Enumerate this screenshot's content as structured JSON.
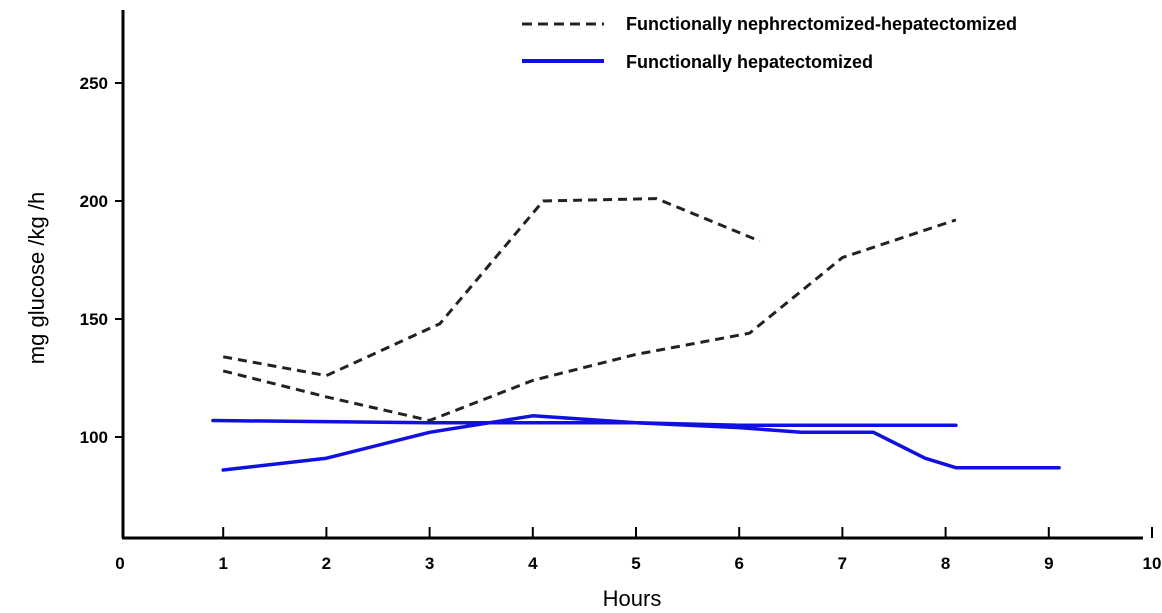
{
  "chart_data": {
    "type": "line",
    "title": "",
    "xlabel": "Hours",
    "ylabel": "mg glucose /kg /h",
    "xlim": [
      0,
      10
    ],
    "ylim": [
      45,
      275
    ],
    "x_ticks": [
      "0",
      "1",
      "2",
      "3",
      "4",
      "5",
      "6",
      "7",
      "8",
      "9",
      "10"
    ],
    "y_ticks": [
      "100",
      "150",
      "200",
      "250"
    ],
    "grid": false,
    "legend_position": "top-right",
    "legend": [
      {
        "label": "Functionally nephrectomized-hepatectomized",
        "style": "dashed",
        "color": "#222222"
      },
      {
        "label": "Functionally hepatectomized",
        "style": "solid",
        "color": "#1010e0"
      }
    ],
    "series": [
      {
        "group": "Functionally nephrectomized-hepatectomized",
        "style": "dashed",
        "color": "#222222",
        "points": [
          [
            1.0,
            134
          ],
          [
            2.0,
            126
          ],
          [
            3.1,
            148
          ],
          [
            4.1,
            200
          ],
          [
            5.2,
            201
          ],
          [
            6.2,
            183
          ]
        ]
      },
      {
        "group": "Functionally nephrectomized-hepatectomized",
        "style": "dashed",
        "color": "#222222",
        "points": [
          [
            1.0,
            128
          ],
          [
            2.0,
            117
          ],
          [
            3.0,
            107
          ],
          [
            4.0,
            124
          ],
          [
            5.0,
            135
          ],
          [
            6.1,
            144
          ],
          [
            7.0,
            176
          ],
          [
            8.1,
            192
          ]
        ]
      },
      {
        "group": "Functionally hepatectomized",
        "style": "solid",
        "color": "#1010e0",
        "points": [
          [
            0.9,
            107
          ],
          [
            3.0,
            106
          ],
          [
            4.0,
            106
          ],
          [
            5.0,
            106
          ],
          [
            6.0,
            105
          ],
          [
            7.0,
            105
          ],
          [
            8.1,
            105
          ]
        ]
      },
      {
        "group": "Functionally hepatectomized",
        "style": "solid",
        "color": "#1010e0",
        "points": [
          [
            1.0,
            86
          ],
          [
            2.0,
            91
          ],
          [
            3.0,
            102
          ],
          [
            4.0,
            109
          ],
          [
            5.0,
            106
          ],
          [
            6.0,
            104
          ],
          [
            6.6,
            102
          ],
          [
            7.0,
            102
          ],
          [
            7.3,
            102
          ],
          [
            7.8,
            91
          ],
          [
            8.1,
            87
          ],
          [
            9.1,
            87
          ]
        ]
      }
    ]
  }
}
